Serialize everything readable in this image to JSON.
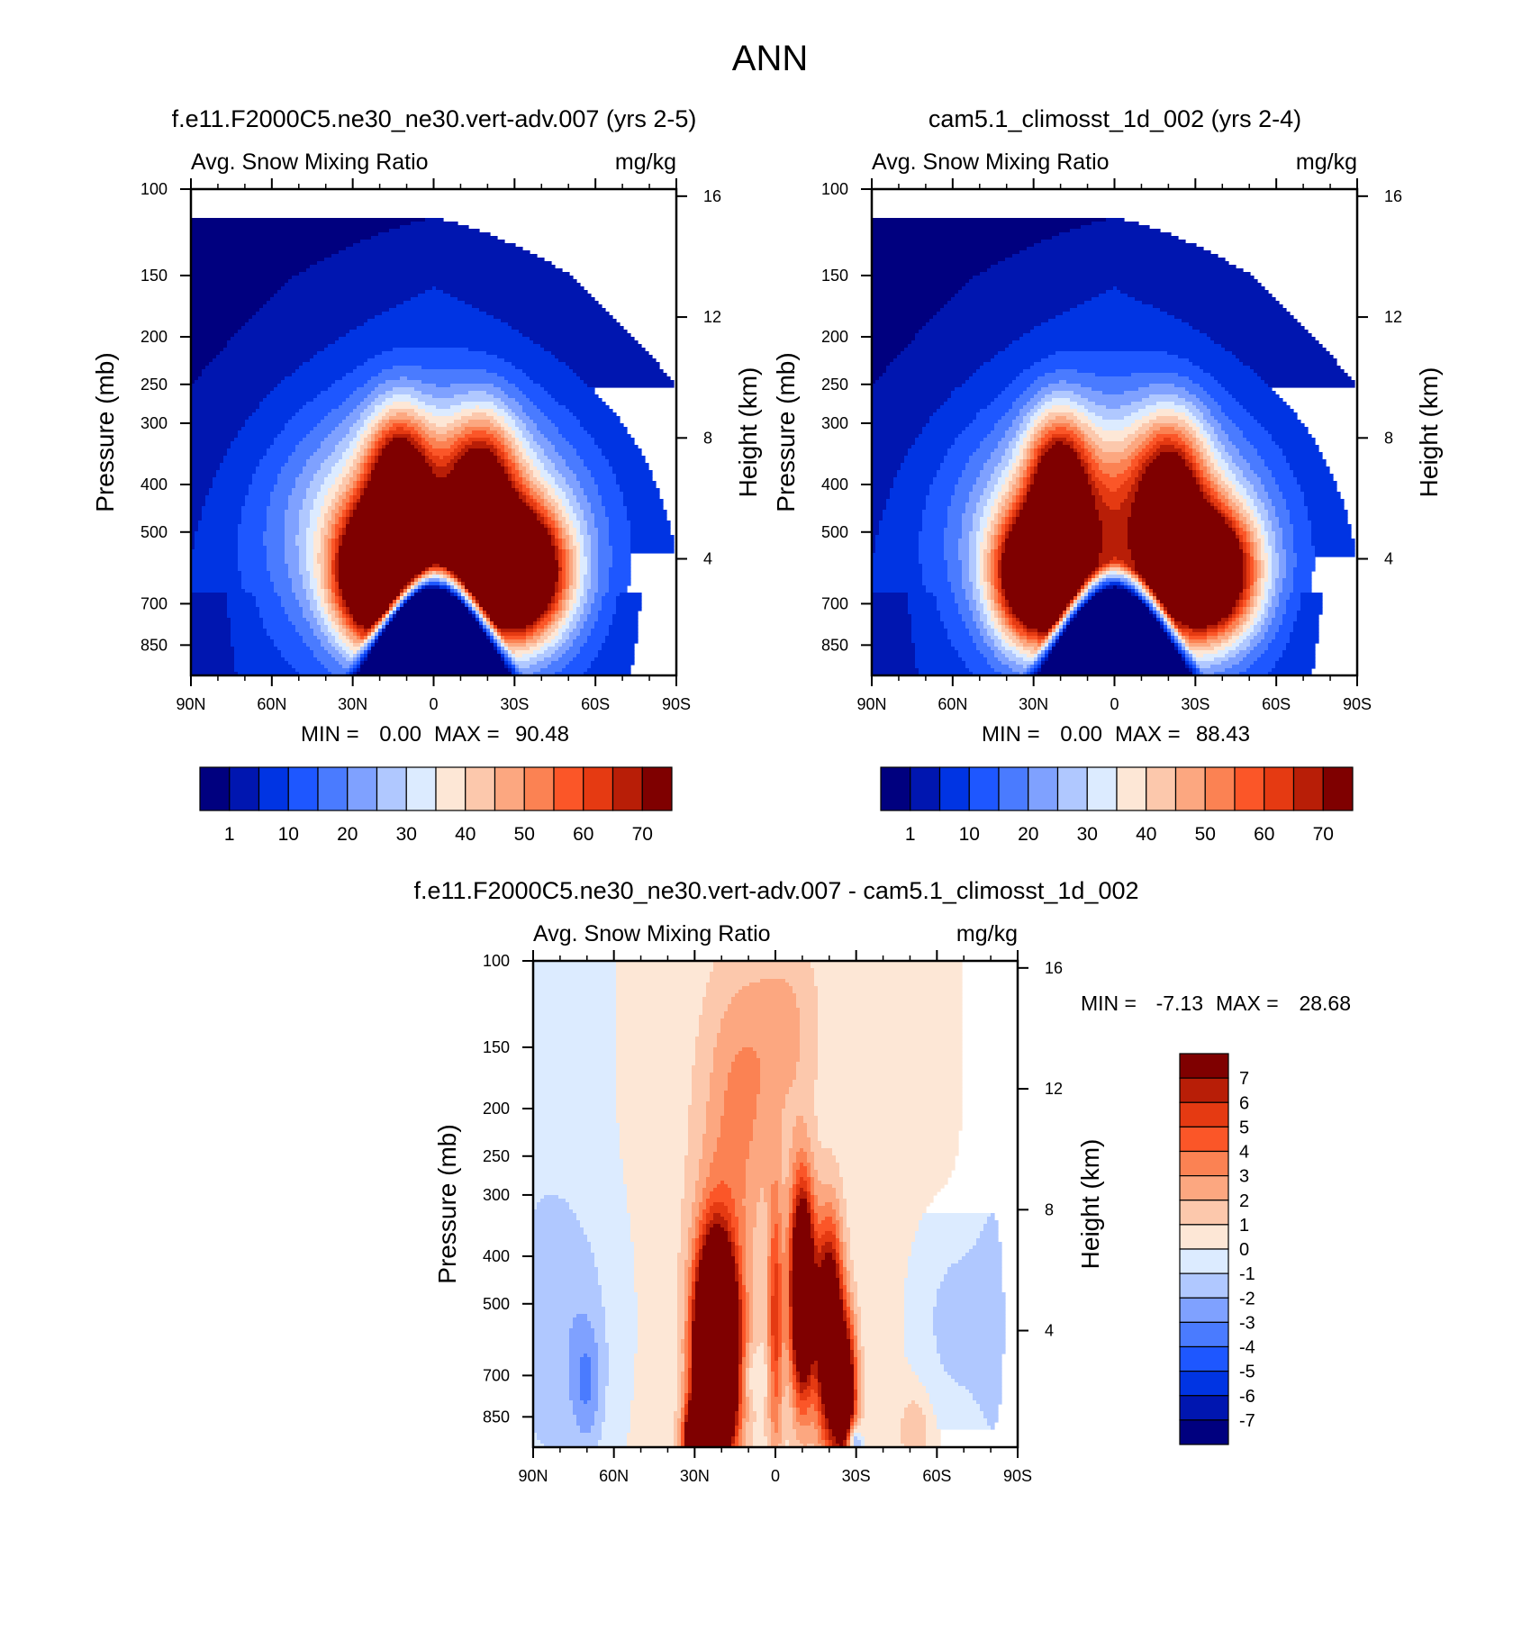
{
  "figure": {
    "title": "ANN",
    "colormap_main": [
      "#00007f",
      "#0016b0",
      "#0034e3",
      "#1e57ff",
      "#4a7bff",
      "#7fa1ff",
      "#b0c8ff",
      "#dcebff",
      "#fde7d6",
      "#fcc8ac",
      "#fca780",
      "#fb8253",
      "#fb5628",
      "#e53a12",
      "#b81e07",
      "#7f0000"
    ],
    "colormap_diff": [
      "#00007f",
      "#0016b0",
      "#0034e3",
      "#1e57ff",
      "#4a7bff",
      "#7fa1ff",
      "#b0c8ff",
      "#dcebff",
      "#fde7d6",
      "#fcc8ac",
      "#fca780",
      "#fb8253",
      "#fb5628",
      "#e53a12",
      "#b81e07",
      "#7f0000"
    ],
    "color_lines": "#000000"
  },
  "chart_data": [
    {
      "type": "heatmap",
      "id": "panel1",
      "title": "f.e11.F2000C5.ne30_ne30.vert-adv.007 (yrs 2-5)",
      "left_string": "Avg. Snow Mixing Ratio",
      "right_string": "mg/kg",
      "ylabel": "Pressure (mb)",
      "ylabel_right": "Height (km)",
      "x_ticks": [
        "90N",
        "60N",
        "30N",
        "0",
        "30S",
        "60S",
        "90S"
      ],
      "y_ticks": [
        "100",
        "150",
        "200",
        "250",
        "300",
        "400",
        "500",
        "700",
        "850"
      ],
      "y_ticks_right": [
        "16",
        "12",
        "8",
        "4"
      ],
      "x_range": [
        90,
        -90
      ],
      "p_range": [
        100,
        1000
      ],
      "stats": {
        "min_label": "MIN =",
        "min": "0.00",
        "max_label": "MAX =",
        "max": "90.48"
      },
      "contour_levels": [
        "1",
        "10",
        "20",
        "30",
        "40",
        "50",
        "60",
        "70"
      ],
      "features": {
        "north_peak_lat": 20,
        "south_peak_lat": -30,
        "peak_pressure": 620,
        "max_value": 90.48,
        "cap_pressure": 115
      }
    },
    {
      "type": "heatmap",
      "id": "panel2",
      "title": "cam5.1_climosst_1d_002 (yrs 2-4)",
      "left_string": "Avg. Snow Mixing Ratio",
      "right_string": "mg/kg",
      "ylabel": "Pressure (mb)",
      "ylabel_right": "Height (km)",
      "x_ticks": [
        "90N",
        "60N",
        "30N",
        "0",
        "30S",
        "60S",
        "90S"
      ],
      "y_ticks": [
        "100",
        "150",
        "200",
        "250",
        "300",
        "400",
        "500",
        "700",
        "850"
      ],
      "y_ticks_right": [
        "16",
        "12",
        "8",
        "4"
      ],
      "x_range": [
        90,
        -90
      ],
      "p_range": [
        100,
        1000
      ],
      "stats": {
        "min_label": "MIN =",
        "min": "0.00",
        "max_label": "MAX =",
        "max": "88.43"
      },
      "contour_levels": [
        "1",
        "10",
        "20",
        "30",
        "40",
        "50",
        "60",
        "70"
      ],
      "features": {
        "north_peak_lat": 28,
        "south_peak_lat": -33,
        "peak_pressure": 600,
        "max_value": 88.43,
        "cap_pressure": 112
      }
    },
    {
      "type": "heatmap",
      "id": "diff",
      "title": "f.e11.F2000C5.ne30_ne30.vert-adv.007 - cam5.1_climosst_1d_002",
      "left_string": "Avg. Snow Mixing Ratio",
      "right_string": "mg/kg",
      "ylabel": "Pressure (mb)",
      "ylabel_right": "Height (km)",
      "x_ticks": [
        "90N",
        "60N",
        "30N",
        "0",
        "30S",
        "60S",
        "90S"
      ],
      "y_ticks": [
        "100",
        "150",
        "200",
        "250",
        "300",
        "400",
        "500",
        "700",
        "850"
      ],
      "y_ticks_right": [
        "16",
        "12",
        "8",
        "4"
      ],
      "x_range": [
        90,
        -90
      ],
      "p_range": [
        100,
        1000
      ],
      "stats": {
        "min_label": "MIN =",
        "min": "-7.13",
        "max_label": "MAX =",
        "max": "28.68"
      },
      "contour_levels": [
        "7",
        "6",
        "5",
        "4",
        "3",
        "2",
        "1",
        "0",
        "-1",
        "-2",
        "-3",
        "-4",
        "-5",
        "-6",
        "-7"
      ],
      "features": {
        "strong_positive_lat": 22,
        "south_positive_lat": -12,
        "max_value": 28.68,
        "min_value": -7.13
      }
    }
  ]
}
